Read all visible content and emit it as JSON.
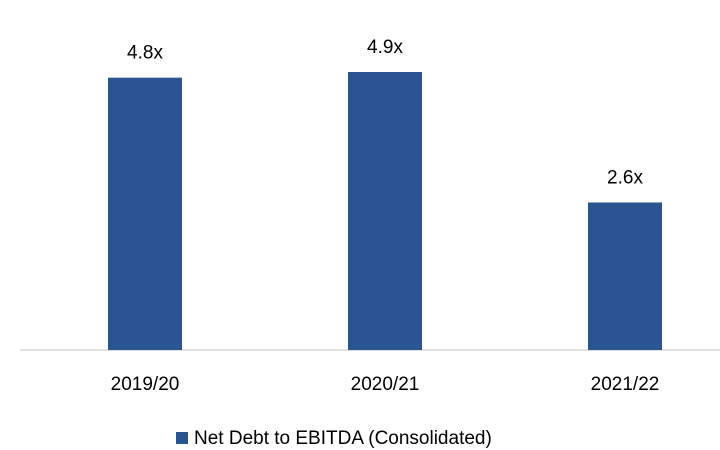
{
  "chart_data": {
    "type": "bar",
    "categories": [
      "2019/20",
      "2020/21",
      "2021/22"
    ],
    "series": [
      {
        "name": "Net Debt to EBITDA (Consolidated)",
        "color": "#2a5592",
        "values": [
          4.8,
          4.9,
          2.6
        ],
        "value_labels": [
          "4.8x",
          "4.9x",
          "2.6x"
        ]
      }
    ],
    "legend": "bottom"
  }
}
